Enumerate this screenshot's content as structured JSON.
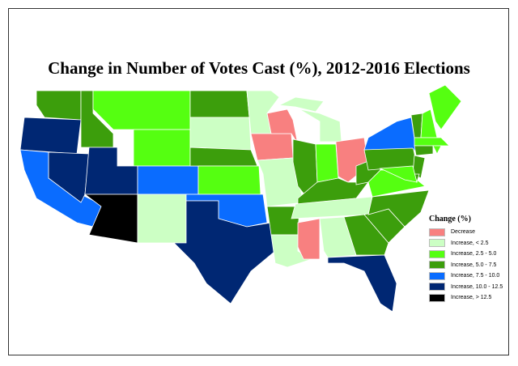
{
  "title": "Change in Number of Votes Cast (%), 2012-2016 Elections",
  "legend": {
    "title": "Change (%)",
    "items": [
      {
        "label": "Decrease",
        "color": "#f88080"
      },
      {
        "label": "Increase, < 2.5",
        "color": "#ccffc4"
      },
      {
        "label": "Increase, 2.5 - 5.0",
        "color": "#55ff11"
      },
      {
        "label": "Increase, 5.0 - 7.5",
        "color": "#3c9e0c"
      },
      {
        "label": "Increase, 7.5 - 10.0",
        "color": "#0a6cff"
      },
      {
        "label": "Increase, 10.0 - 12.5",
        "color": "#002773"
      },
      {
        "label": "Increase, > 12.5",
        "color": "#000000"
      }
    ]
  },
  "state_category": {
    "WA": 3,
    "OR": 5,
    "CA": 4,
    "NV": 5,
    "ID": 3,
    "MT": 2,
    "WY": 2,
    "UT": 5,
    "AZ": 6,
    "NM": 1,
    "CO": 4,
    "ND": 3,
    "SD": 1,
    "NE": 3,
    "KS": 2,
    "OK": 4,
    "TX": 5,
    "MN": 1,
    "IA": 0,
    "MO": 1,
    "AR": 3,
    "LA": 1,
    "WI": 0,
    "IL": 3,
    "MI": 1,
    "IN": 2,
    "OH": 0,
    "KY": 3,
    "TN": 1,
    "MS": 0,
    "AL": 1,
    "GA": 3,
    "FL": 5,
    "SC": 3,
    "NC": 3,
    "VA": 2,
    "WV": 3,
    "PA": 3,
    "NY": 4,
    "VT": 3,
    "NH": 2,
    "ME": 2,
    "MA": 2,
    "CT": 3,
    "RI": 2,
    "NJ": 3,
    "DE": 3,
    "MD": 2
  }
}
